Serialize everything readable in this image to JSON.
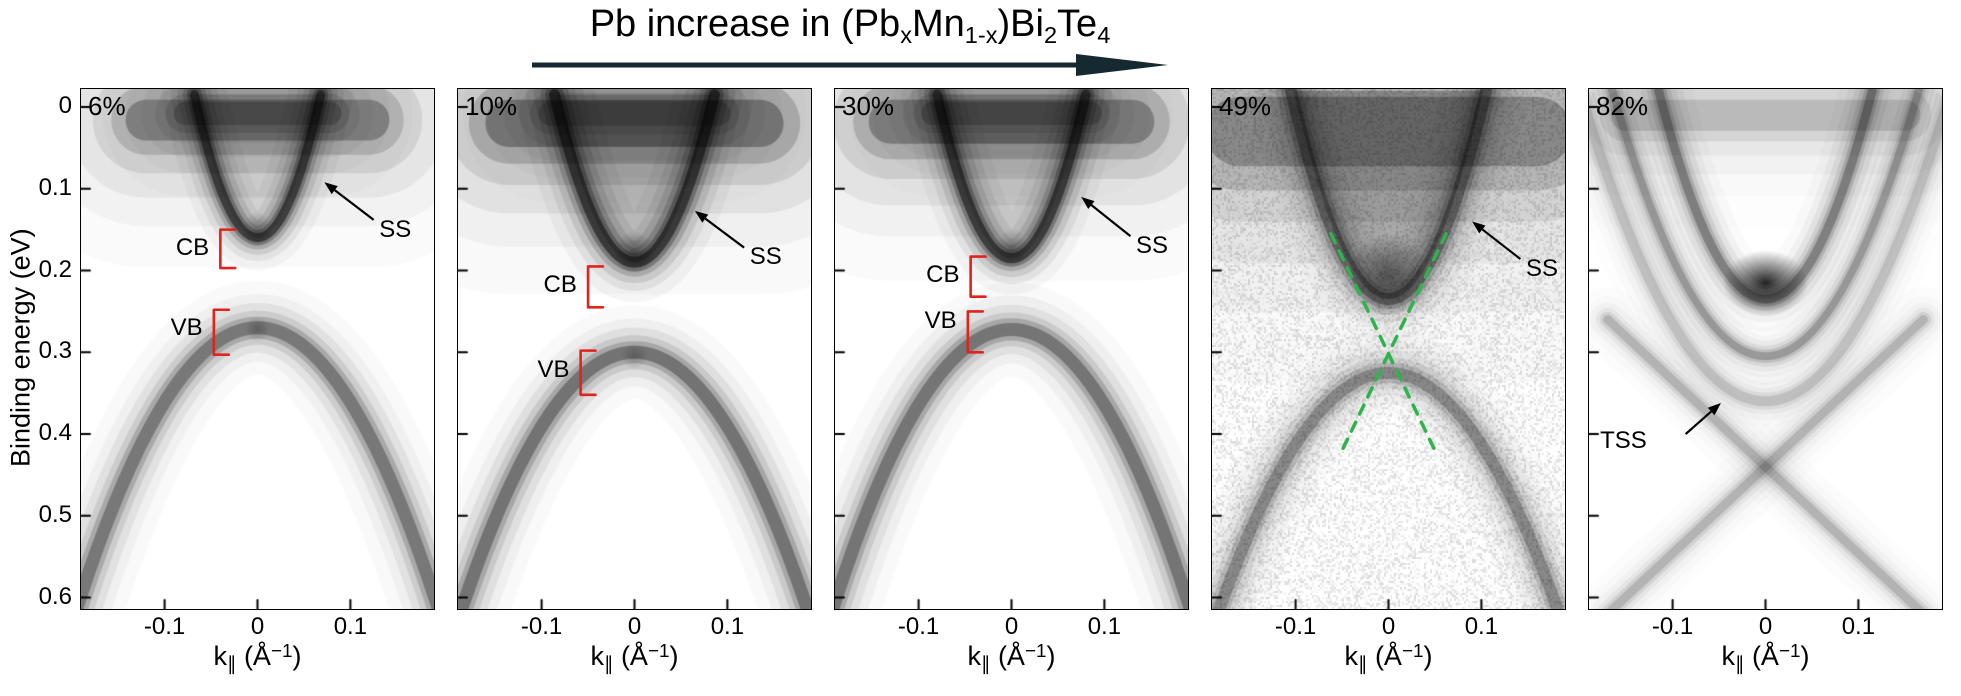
{
  "header": {
    "title": {
      "t1": "Pb increase in (Pb",
      "s1": "x",
      "t2": "Mn",
      "s2": "1-x",
      "t3": ")Bi",
      "s3": "2",
      "t4": "Te",
      "s4": "4"
    },
    "arrow_color": "#142a30"
  },
  "axes": {
    "y_label": "Binding energy (eV)",
    "y_ticks": [
      "0",
      "0.1",
      "0.2",
      "0.3",
      "0.4",
      "0.5",
      "0.6"
    ],
    "x_label": {
      "k": "k",
      "sub": "∥",
      "mid": " (Å",
      "sup": "−1",
      "end": ")"
    },
    "x_ticks": [
      "-0.1",
      "0",
      "0.1"
    ]
  },
  "palette": {
    "annotation_red": "#e0231c",
    "dirac_green": "#2fb34c",
    "ink": "#000000"
  },
  "chart_data": {
    "type": "heatmap",
    "description": "Five ARPES band-structure intensity maps of (PbxMn1-x)Bi2Te4 for increasing Pb content; grayscale intensity vs momentum and binding energy",
    "title": "Pb increase in (PbxMn1-x)Bi2Te4",
    "x_axis": {
      "label": "k|| (Å−1)",
      "tick_values": [
        -0.1,
        0,
        0.1
      ],
      "range": [
        -0.19,
        0.19
      ],
      "units": "Å−1"
    },
    "y_axis": {
      "label": "Binding energy (eV)",
      "tick_values": [
        0,
        0.1,
        0.2,
        0.3,
        0.4,
        0.5,
        0.6
      ],
      "range": [
        -0.022,
        0.614
      ],
      "units": "eV",
      "direction": "down"
    },
    "panels": [
      {
        "composition": "6%",
        "cb_bottom_eV": 0.16,
        "vb_top_eV": 0.27,
        "gap_state": "open",
        "annotations": {
          "ss": {
            "text": "SS",
            "tail": [
              0.125,
              0.138
            ],
            "tip": [
              0.072,
              0.092
            ],
            "text_pos": [
              0.131,
              0.15
            ]
          },
          "cb": {
            "text": "CB",
            "bracket": {
              "k": -0.04,
              "e0": 0.15,
              "e1": 0.197,
              "dk": 0.016
            },
            "text_pos": [
              -0.052,
              0.172
            ]
          },
          "vb": {
            "text": "VB",
            "bracket": {
              "k": -0.047,
              "e0": 0.248,
              "e1": 0.303,
              "dk": 0.016
            },
            "text_pos": [
              -0.059,
              0.27
            ]
          }
        },
        "render": [
          {
            "op": "smear",
            "e": 0.016,
            "k0": -0.12,
            "k1": 0.12,
            "w": 0.05,
            "a": 0.4
          },
          {
            "op": "smear",
            "e": 0.008,
            "k0": -0.078,
            "k1": 0.078,
            "w": 0.028,
            "a": 0.3
          },
          {
            "op": "quadfill",
            "ka": 0.066,
            "ea": -0.015,
            "v": 0.16,
            "a": 0.1
          },
          {
            "op": "quadband",
            "ka": 0.068,
            "ea": -0.015,
            "v": 0.16,
            "w": 9,
            "a": 0.75
          },
          {
            "op": "blob",
            "k": 0,
            "e": 0.15,
            "rx": 0.016,
            "ry": 0.022,
            "a": 0.35
          },
          {
            "op": "quadband",
            "ka": 0.21,
            "ea": 0.67,
            "v": 0.27,
            "w": 13,
            "a": 0.46
          },
          {
            "op": "blob",
            "k": 0,
            "e": 0.272,
            "rx": 0.013,
            "ry": 0.016,
            "a": 0.22
          }
        ]
      },
      {
        "composition": "10%",
        "cb_bottom_eV": 0.19,
        "vb_top_eV": 0.3,
        "gap_state": "open",
        "annotations": {
          "ss": {
            "text": "SS",
            "tail": [
              0.118,
              0.172
            ],
            "tip": [
              0.065,
              0.127
            ],
            "text_pos": [
              0.124,
              0.184
            ]
          },
          "cb": {
            "text": "CB",
            "bracket": {
              "k": -0.05,
              "e0": 0.195,
              "e1": 0.245,
              "dk": 0.016
            },
            "text_pos": [
              -0.062,
              0.218
            ]
          },
          "vb": {
            "text": "VB",
            "bracket": {
              "k": -0.058,
              "e0": 0.298,
              "e1": 0.352,
              "dk": 0.016
            },
            "text_pos": [
              -0.07,
              0.322
            ]
          }
        },
        "render": [
          {
            "op": "smear",
            "e": 0.02,
            "k0": -0.135,
            "k1": 0.135,
            "w": 0.058,
            "a": 0.46
          },
          {
            "op": "smear",
            "e": 0.008,
            "k0": -0.09,
            "k1": 0.09,
            "w": 0.03,
            "a": 0.28
          },
          {
            "op": "quadfill",
            "ka": 0.083,
            "ea": -0.015,
            "v": 0.19,
            "a": 0.2
          },
          {
            "op": "quadband",
            "ka": 0.086,
            "ea": -0.015,
            "v": 0.19,
            "w": 11,
            "a": 0.78
          },
          {
            "op": "blob",
            "k": 0,
            "e": 0.178,
            "rx": 0.022,
            "ry": 0.026,
            "a": 0.45
          },
          {
            "op": "quadband",
            "ka": 0.21,
            "ea": 0.7,
            "v": 0.3,
            "w": 13,
            "a": 0.48
          },
          {
            "op": "blob",
            "k": 0,
            "e": 0.305,
            "rx": 0.014,
            "ry": 0.017,
            "a": 0.2
          }
        ]
      },
      {
        "composition": "30%",
        "cb_bottom_eV": 0.185,
        "vb_top_eV": 0.27,
        "gap_state": "open",
        "annotations": {
          "ss": {
            "text": "SS",
            "tail": [
              0.128,
              0.158
            ],
            "tip": [
              0.075,
              0.11
            ],
            "text_pos": [
              0.134,
              0.17
            ]
          },
          "cb": {
            "text": "CB",
            "bracket": {
              "k": -0.044,
              "e0": 0.183,
              "e1": 0.232,
              "dk": 0.016
            },
            "text_pos": [
              -0.056,
              0.206
            ]
          },
          "vb": {
            "text": "VB",
            "bracket": {
              "k": -0.047,
              "e0": 0.25,
              "e1": 0.3,
              "dk": 0.016
            },
            "text_pos": [
              -0.059,
              0.262
            ]
          }
        },
        "render": [
          {
            "op": "smear",
            "e": 0.018,
            "k0": -0.13,
            "k1": 0.13,
            "w": 0.054,
            "a": 0.42
          },
          {
            "op": "smear",
            "e": 0.008,
            "k0": -0.085,
            "k1": 0.085,
            "w": 0.028,
            "a": 0.28
          },
          {
            "op": "quadfill",
            "ka": 0.078,
            "ea": -0.015,
            "v": 0.185,
            "a": 0.15
          },
          {
            "op": "quadband",
            "ka": 0.08,
            "ea": -0.015,
            "v": 0.185,
            "w": 10,
            "a": 0.76
          },
          {
            "op": "blob",
            "k": 0,
            "e": 0.173,
            "rx": 0.018,
            "ry": 0.024,
            "a": 0.38
          },
          {
            "op": "quadband",
            "ka": 0.205,
            "ea": 0.66,
            "v": 0.272,
            "w": 13,
            "a": 0.47
          }
        ]
      },
      {
        "composition": "49%",
        "cb_bottom_eV": null,
        "vb_top_eV": null,
        "gap_state": "closed",
        "dirac_point_eV": 0.29,
        "annotations": {
          "ss": {
            "text": "SS",
            "tail": [
              0.142,
              0.186
            ],
            "tip": [
              0.09,
              0.14
            ],
            "text_pos": [
              0.148,
              0.198
            ]
          },
          "dirac": {
            "lines": [
              [
                -0.062,
                0.155,
                0.052,
                0.425
              ],
              [
                0.062,
                0.155,
                -0.052,
                0.425
              ]
            ]
          }
        },
        "render": [
          {
            "op": "smear",
            "e": 0.03,
            "k0": -0.16,
            "k1": 0.16,
            "w": 0.085,
            "a": 0.38
          },
          {
            "op": "quadfill",
            "ka": 0.102,
            "ea": -0.02,
            "v": 0.235,
            "a": 0.26
          },
          {
            "op": "quadband",
            "ka": 0.105,
            "ea": -0.02,
            "v": 0.235,
            "w": 12,
            "a": 0.5
          },
          {
            "op": "blob",
            "k": 0,
            "e": 0.205,
            "rx": 0.045,
            "ry": 0.05,
            "a": 0.5
          },
          {
            "op": "quadband",
            "ka": 0.19,
            "ea": 0.64,
            "v": 0.325,
            "w": 12,
            "a": 0.38
          },
          {
            "op": "noise",
            "cell": 2,
            "prob": 0.5,
            "amax": 0.15
          }
        ]
      },
      {
        "composition": "82%",
        "cb_bottom_eV": null,
        "vb_top_eV": null,
        "gap_state": "n/a",
        "annotations": {
          "tss": {
            "text": "TSS",
            "tail": [
              -0.086,
              0.4
            ],
            "tip": [
              -0.048,
              0.362
            ],
            "text_pos": [
              -0.178,
              0.408
            ]
          }
        },
        "render": [
          {
            "op": "smear",
            "e": 0.01,
            "k0": -0.15,
            "k1": 0.15,
            "w": 0.038,
            "a": 0.2
          },
          {
            "op": "quadband",
            "ka": 0.21,
            "ea": -0.06,
            "v": 0.36,
            "w": 10,
            "a": 0.18
          },
          {
            "op": "quadband",
            "ka": 0.165,
            "ea": -0.02,
            "v": 0.305,
            "w": 8,
            "a": 0.32
          },
          {
            "op": "quadband",
            "ka": 0.115,
            "ea": -0.02,
            "v": 0.235,
            "w": 9,
            "a": 0.42
          },
          {
            "op": "blob",
            "k": 0,
            "e": 0.215,
            "rx": 0.046,
            "ry": 0.04,
            "a": 0.85
          },
          {
            "op": "lineband",
            "x1": -0.17,
            "y1": 0.62,
            "x2": 0.17,
            "y2": 0.26,
            "w": 9,
            "a": 0.22
          },
          {
            "op": "lineband",
            "x1": 0.17,
            "y1": 0.62,
            "x2": -0.17,
            "y2": 0.26,
            "w": 9,
            "a": 0.22
          }
        ]
      }
    ]
  }
}
